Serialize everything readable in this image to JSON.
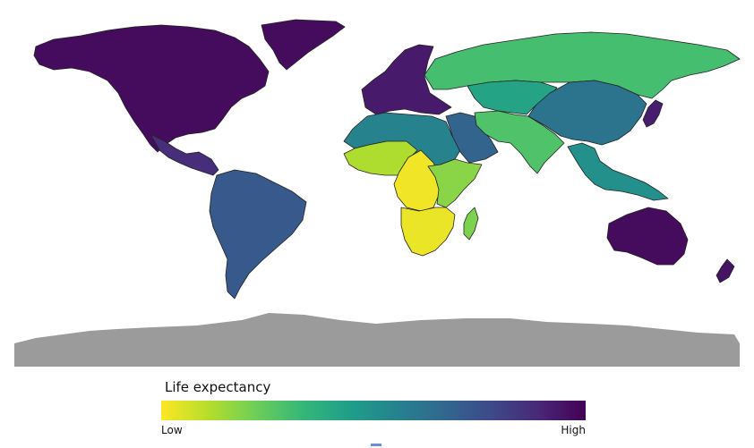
{
  "legend": {
    "title": "Life expectancy",
    "low_label": "Low",
    "high_label": "High",
    "color_low": "#fde725",
    "color_high": "#440154"
  },
  "regions": [
    {
      "name": "north-america",
      "level": 0.97
    },
    {
      "name": "greenland",
      "level": 0.97
    },
    {
      "name": "central-america",
      "level": 0.87
    },
    {
      "name": "south-america",
      "level": 0.72
    },
    {
      "name": "europe",
      "level": 0.93
    },
    {
      "name": "russia",
      "level": 0.3
    },
    {
      "name": "north-africa",
      "level": 0.55
    },
    {
      "name": "middle-east",
      "level": 0.68
    },
    {
      "name": "west-africa",
      "level": 0.12
    },
    {
      "name": "central-africa",
      "level": 0.02
    },
    {
      "name": "southern-africa",
      "level": 0.03
    },
    {
      "name": "east-africa",
      "level": 0.18
    },
    {
      "name": "madagascar",
      "level": 0.2
    },
    {
      "name": "central-asia",
      "level": 0.42
    },
    {
      "name": "south-asia",
      "level": 0.28
    },
    {
      "name": "east-asia",
      "level": 0.62
    },
    {
      "name": "japan",
      "level": 0.92
    },
    {
      "name": "southeast-asia",
      "level": 0.5
    },
    {
      "name": "oceania",
      "level": 0.97
    },
    {
      "name": "new-zealand",
      "level": 0.95
    },
    {
      "name": "antarctica",
      "level": null
    }
  ]
}
